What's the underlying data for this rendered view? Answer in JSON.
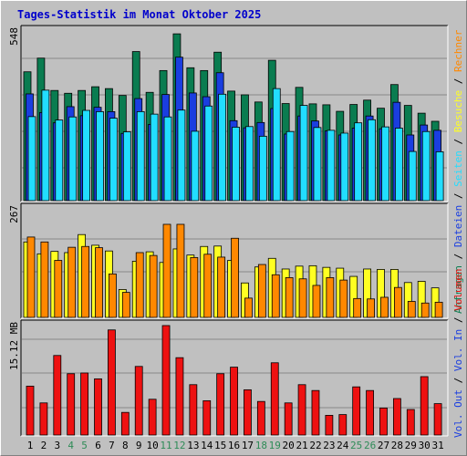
{
  "title": "Tages-Statistik im Monat Oktober 2025",
  "colors": {
    "background": "#c0c0c0",
    "panel": "#c0c0c0",
    "title": "#0000cc",
    "grid": "#888888",
    "anfragen": "#0a7c50",
    "dateien": "#1a3ee0",
    "seiten": "#22ddff",
    "besuche": "#ffff22",
    "rechner": "#ff8800",
    "volumen": "#ee1111",
    "weekend_label": "#2e8b57",
    "weekday_label": "#000000"
  },
  "chart_data": [
    {
      "type": "bar",
      "panel": "top",
      "ymax_label": "548",
      "x": [
        "1",
        "2",
        "3",
        "4",
        "5",
        "6",
        "7",
        "8",
        "9",
        "10",
        "11",
        "12",
        "13",
        "14",
        "15",
        "16",
        "17",
        "18",
        "19",
        "20",
        "21",
        "22",
        "23",
        "24",
        "25",
        "26",
        "27",
        "28",
        "29",
        "30",
        "31"
      ],
      "ylim": [
        0,
        548
      ],
      "series": [
        {
          "name": "Anfragen",
          "color": "#0a7c50",
          "values": [
            414,
            458,
            354,
            345,
            354,
            366,
            360,
            338,
            479,
            348,
            418,
            536,
            427,
            418,
            477,
            352,
            340,
            317,
            451,
            312,
            364,
            311,
            308,
            287,
            309,
            323,
            297,
            373,
            306,
            281,
            255
          ]
        },
        {
          "name": "Dateien",
          "color": "#1a3ee0",
          "values": [
            343,
            283,
            250,
            302,
            273,
            300,
            286,
            216,
            328,
            245,
            341,
            461,
            346,
            334,
            411,
            257,
            234,
            251,
            296,
            214,
            272,
            256,
            224,
            211,
            233,
            272,
            231,
            316,
            211,
            243,
            226
          ]
        },
        {
          "name": "Seiten",
          "color": "#22ddff",
          "values": [
            270,
            355,
            259,
            269,
            290,
            286,
            265,
            221,
            286,
            278,
            269,
            291,
            223,
            304,
            342,
            236,
            238,
            207,
            360,
            222,
            306,
            235,
            226,
            217,
            250,
            260,
            237,
            233,
            158,
            222,
            157
          ]
        }
      ]
    },
    {
      "type": "bar",
      "panel": "middle",
      "ymax_label": "267",
      "x": [
        "1",
        "2",
        "3",
        "4",
        "5",
        "6",
        "7",
        "8",
        "9",
        "10",
        "11",
        "12",
        "13",
        "14",
        "15",
        "16",
        "17",
        "18",
        "19",
        "20",
        "21",
        "22",
        "23",
        "24",
        "25",
        "26",
        "27",
        "28",
        "29",
        "30",
        "31"
      ],
      "ylim": [
        0,
        267
      ],
      "series": [
        {
          "name": "Besuche",
          "color": "#ffff22",
          "values": [
            184,
            155,
            161,
            158,
            202,
            176,
            162,
            68,
            137,
            160,
            134,
            167,
            152,
            173,
            174,
            139,
            84,
            123,
            144,
            118,
            125,
            126,
            122,
            120,
            100,
            118,
            117,
            117,
            85,
            88,
            72
          ]
        },
        {
          "name": "Rechner",
          "color": "#ff8800",
          "values": [
            196,
            184,
            139,
            171,
            173,
            170,
            106,
            61,
            158,
            151,
            227,
            227,
            146,
            154,
            147,
            193,
            47,
            129,
            104,
            97,
            94,
            78,
            97,
            91,
            46,
            45,
            49,
            73,
            39,
            35,
            37
          ]
        }
      ]
    },
    {
      "type": "bar",
      "panel": "bottom",
      "ymax_label": "15.12 MB",
      "x": [
        "1",
        "2",
        "3",
        "4",
        "5",
        "6",
        "7",
        "8",
        "9",
        "10",
        "11",
        "12",
        "13",
        "14",
        "15",
        "16",
        "17",
        "18",
        "19",
        "20",
        "21",
        "22",
        "23",
        "24",
        "25",
        "26",
        "27",
        "28",
        "29",
        "30",
        "31"
      ],
      "ylim": [
        0,
        15.12
      ],
      "series": [
        {
          "name": "Volumen",
          "color": "#ee1111",
          "values": [
            6.7,
            4.4,
            10.9,
            8.4,
            8.5,
            7.7,
            14.4,
            3.1,
            9.4,
            4.9,
            15.0,
            10.6,
            6.9,
            4.7,
            8.4,
            9.3,
            6.2,
            4.6,
            9.9,
            4.4,
            6.9,
            6.1,
            2.7,
            2.8,
            6.6,
            6.1,
            3.7,
            5.0,
            3.5,
            8.0,
            4.3
          ]
        }
      ]
    }
  ],
  "x_labels": [
    {
      "label": "1",
      "weekend": false
    },
    {
      "label": "2",
      "weekend": false
    },
    {
      "label": "3",
      "weekend": false
    },
    {
      "label": "4",
      "weekend": true
    },
    {
      "label": "5",
      "weekend": true
    },
    {
      "label": "6",
      "weekend": false
    },
    {
      "label": "7",
      "weekend": false
    },
    {
      "label": "8",
      "weekend": false
    },
    {
      "label": "9",
      "weekend": false
    },
    {
      "label": "10",
      "weekend": false
    },
    {
      "label": "11",
      "weekend": true
    },
    {
      "label": "12",
      "weekend": true
    },
    {
      "label": "13",
      "weekend": false
    },
    {
      "label": "14",
      "weekend": false
    },
    {
      "label": "15",
      "weekend": false
    },
    {
      "label": "16",
      "weekend": false
    },
    {
      "label": "17",
      "weekend": false
    },
    {
      "label": "18",
      "weekend": true
    },
    {
      "label": "19",
      "weekend": true
    },
    {
      "label": "20",
      "weekend": false
    },
    {
      "label": "21",
      "weekend": false
    },
    {
      "label": "22",
      "weekend": false
    },
    {
      "label": "23",
      "weekend": false
    },
    {
      "label": "24",
      "weekend": false
    },
    {
      "label": "25",
      "weekend": true
    },
    {
      "label": "26",
      "weekend": true
    },
    {
      "label": "27",
      "weekend": false
    },
    {
      "label": "28",
      "weekend": false
    },
    {
      "label": "29",
      "weekend": false
    },
    {
      "label": "30",
      "weekend": false
    },
    {
      "label": "31",
      "weekend": false
    }
  ],
  "right_labels": {
    "top": [
      {
        "text": "Anfragen",
        "color": "#0a7c50"
      },
      {
        "text": " / ",
        "color": "#000000"
      },
      {
        "text": "Dateien",
        "color": "#1a3ee0"
      },
      {
        "text": " / ",
        "color": "#000000"
      },
      {
        "text": "Seiten",
        "color": "#22ddff"
      },
      {
        "text": " / ",
        "color": "#000000"
      },
      {
        "text": "Besuche",
        "color": "#ffff22"
      },
      {
        "text": " / ",
        "color": "#000000"
      },
      {
        "text": "Rechner",
        "color": "#ff8800"
      }
    ],
    "bottom": [
      {
        "text": "Vol. Out",
        "color": "#1a3ee0"
      },
      {
        "text": " / ",
        "color": "#000000"
      },
      {
        "text": "Vol. In",
        "color": "#1a3ee0"
      },
      {
        "text": " / ",
        "color": "#000000"
      },
      {
        "text": "Volumen",
        "color": "#ee1111"
      }
    ]
  }
}
